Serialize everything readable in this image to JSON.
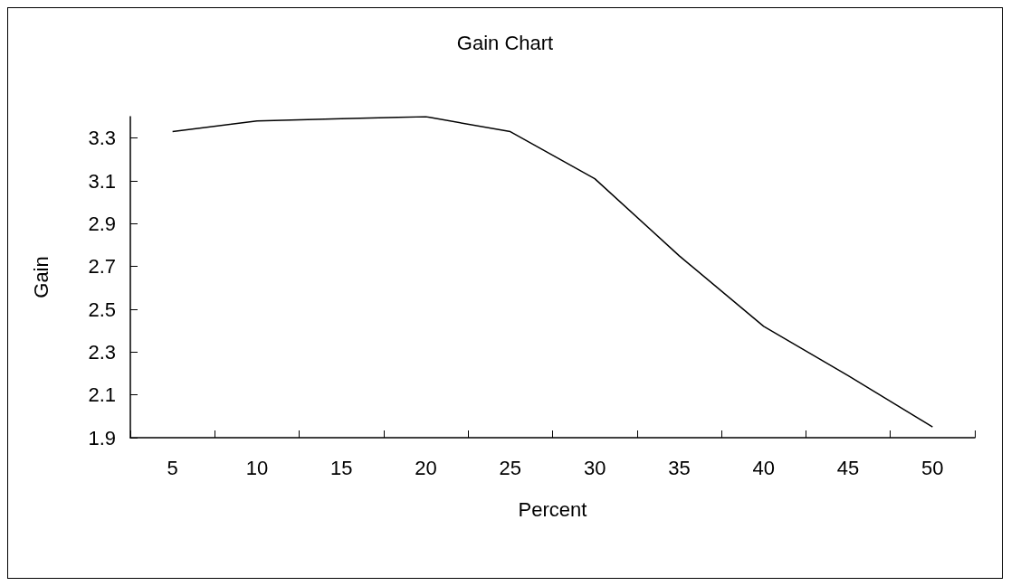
{
  "chart_data": {
    "type": "line",
    "title": "Gain Chart",
    "xlabel": "Percent",
    "ylabel": "Gain",
    "categories": [
      "5",
      "10",
      "15",
      "20",
      "25",
      "30",
      "35",
      "40",
      "45",
      "50"
    ],
    "series": [
      {
        "color": "#000000",
        "values": [
          3.33,
          3.38,
          3.39,
          3.4,
          3.33,
          3.11,
          2.75,
          2.42,
          2.19,
          1.95
        ]
      }
    ],
    "ylim": [
      1.9,
      3.4
    ],
    "yticks": [
      1.9,
      2.1,
      2.3,
      2.5,
      2.7,
      2.9,
      3.1,
      3.3
    ],
    "grid": false,
    "marker": "none",
    "line_style": "solid"
  }
}
